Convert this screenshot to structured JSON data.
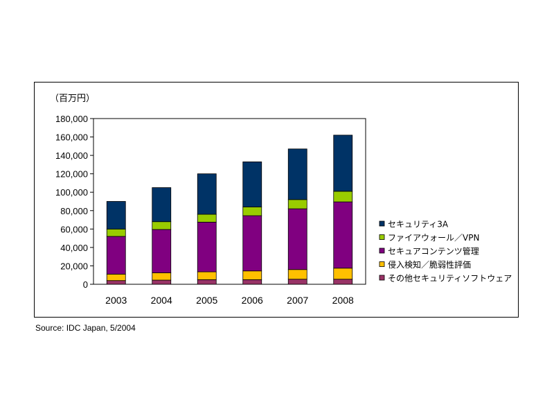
{
  "source": "Source: IDC Japan, 5/2004",
  "chart_data": {
    "type": "bar",
    "stacked": true,
    "unit_label": "（百万円）",
    "categories": [
      "2003",
      "2004",
      "2005",
      "2006",
      "2007",
      "2008"
    ],
    "ylim": [
      0,
      180000
    ],
    "yticks": [
      0,
      20000,
      40000,
      60000,
      80000,
      100000,
      120000,
      140000,
      160000,
      180000
    ],
    "ytick_labels": [
      "0",
      "20,000",
      "40,000",
      "60,000",
      "80,000",
      "100,000",
      "120,000",
      "140,000",
      "160,000",
      "180,000"
    ],
    "grid": false,
    "legend_position": "right",
    "series": [
      {
        "name": "その他セキュリティソフトウェア",
        "color": "#993366",
        "values": [
          4000,
          4500,
          5000,
          5000,
          5500,
          5500
        ]
      },
      {
        "name": "侵入検知／脆弱性評価",
        "color": "#FFC000",
        "values": [
          7000,
          8000,
          8500,
          9500,
          10500,
          12000
        ]
      },
      {
        "name": "セキュアコンテンツ管理",
        "color": "#800080",
        "values": [
          41000,
          47000,
          54000,
          60000,
          66000,
          72000
        ]
      },
      {
        "name": "ファイアウォール／VPN",
        "color": "#99CC00",
        "values": [
          8000,
          8500,
          8500,
          9500,
          10000,
          11500
        ]
      },
      {
        "name": "セキュリティ3A",
        "color": "#003366",
        "values": [
          30000,
          37000,
          44000,
          49000,
          55000,
          61000
        ]
      }
    ]
  }
}
